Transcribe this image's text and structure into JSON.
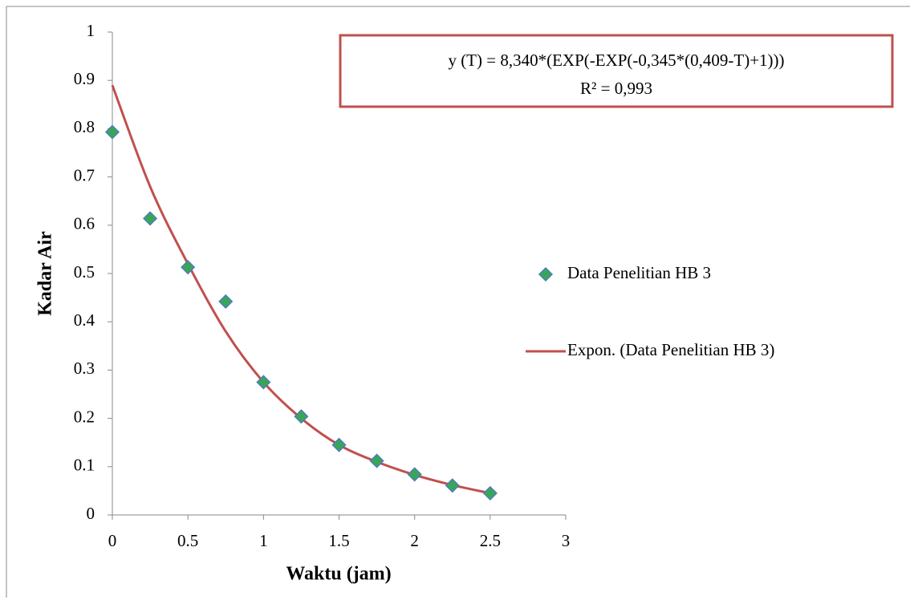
{
  "chart_data": {
    "type": "scatter",
    "x_label": "Waktu (jam)",
    "y_label": "Kadar Air",
    "annotations": [
      "y (T) = 8,340*(EXP(-EXP(-0,345*(0,409-T)+1)))",
      "R² = 0,993"
    ],
    "xlim": [
      0,
      3
    ],
    "xticks": [
      0,
      0.5,
      1,
      1.5,
      2,
      2.5,
      3
    ],
    "ylim": [
      0,
      1
    ],
    "yticks": [
      0,
      0.1,
      0.2,
      0.3,
      0.4,
      0.5,
      0.6,
      0.7,
      0.8,
      0.9,
      1
    ],
    "grid": false,
    "legend": "right",
    "series": [
      {
        "name": "Data Penelitian HB 3",
        "color": "#3aa655",
        "mode": "markers",
        "x": [
          0,
          0.25,
          0.5,
          0.75,
          1,
          1.25,
          1.5,
          1.75,
          2,
          2.25,
          2.5
        ],
        "values": [
          0.793,
          0.614,
          0.513,
          0.442,
          0.275,
          0.204,
          0.145,
          0.112,
          0.084,
          0.061,
          0.045
        ]
      },
      {
        "name": "Expon. (Data Penelitian HB 3)",
        "color": "#c0504d",
        "mode": "line",
        "x": [
          0,
          0.25,
          0.5,
          0.75,
          1,
          1.25,
          1.5,
          1.75,
          2,
          2.25,
          2.5
        ],
        "values": [
          0.89,
          0.68,
          0.52,
          0.38,
          0.275,
          0.2,
          0.145,
          0.11,
          0.083,
          0.062,
          0.045
        ]
      }
    ]
  }
}
